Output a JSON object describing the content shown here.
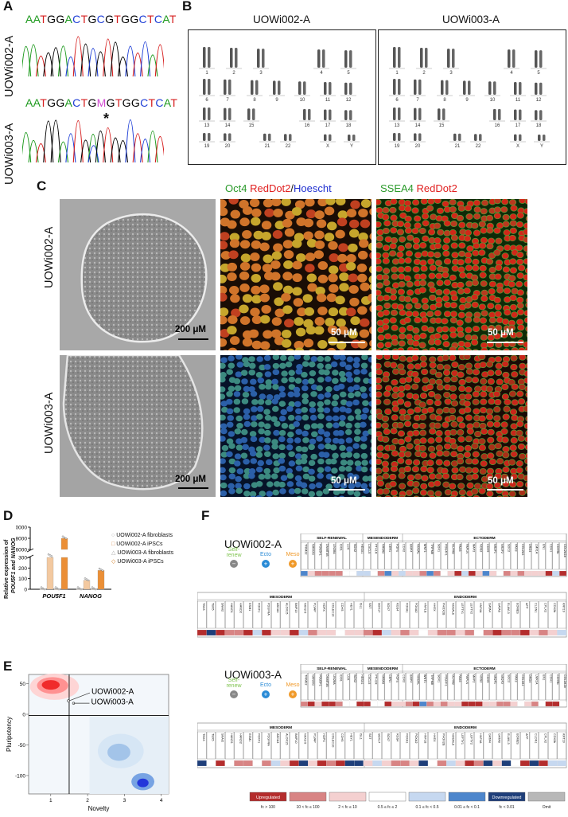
{
  "panels": {
    "a": "A",
    "b": "B",
    "c": "C",
    "d": "D",
    "e": "E",
    "f": "F"
  },
  "lines": {
    "l2": "UOWi002-A",
    "l3": "UOWi003-A"
  },
  "panel_a": {
    "seq_l2": [
      "A",
      "A",
      "T",
      "G",
      "G",
      "A",
      "C",
      "T",
      "G",
      "C",
      "G",
      "T",
      "G",
      "G",
      "C",
      "T",
      "C",
      "A",
      "T"
    ],
    "seq_l3": [
      "A",
      "A",
      "T",
      "G",
      "G",
      "A",
      "C",
      "T",
      "G",
      "M",
      "G",
      "T",
      "G",
      "G",
      "C",
      "T",
      "C",
      "A",
      "T"
    ],
    "mark": "*"
  },
  "panel_b": {
    "chromosomes": [
      "1",
      "2",
      "3",
      "4",
      "5",
      "6",
      "7",
      "8",
      "9",
      "10",
      "11",
      "12",
      "13",
      "14",
      "15",
      "16",
      "17",
      "18",
      "19",
      "20",
      "21",
      "22",
      "X",
      "Y"
    ]
  },
  "panel_c": {
    "stain1": {
      "oct": "Oct4",
      "red": "RedDot2",
      "slash": "/",
      "hoe": "Hoescht"
    },
    "stain2": {
      "ssea": "SSEA4",
      "red": "RedDot2"
    },
    "scale_phase": "200 μM",
    "scale_fluor": "50  μM",
    "scale_fluor2": "50  μM",
    "scale_fluor3": "50  μM",
    "scale_fluor4": "50  μM",
    "scale_phase2": "200 μM"
  },
  "panel_d": {
    "ylabel_line1": "Relative expression of",
    "ylabel_line2": "POU5F1 and NANOG",
    "yticks": [
      "10000",
      "8000",
      "6000",
      "300",
      "200",
      "100",
      "0"
    ],
    "categories": [
      "POU5F1",
      "NANOG"
    ],
    "legend": [
      "UOWi002-A fibroblasts",
      "UOWi002-A iPSCs",
      "UOWi003-A fibroblasts",
      "UOWi003-A iPSCs"
    ]
  },
  "chart_data": {
    "type": "bar",
    "categories": [
      "POU5F1",
      "NANOG"
    ],
    "series": [
      {
        "name": "UOWi002-A fibroblasts",
        "values": [
          1,
          1
        ]
      },
      {
        "name": "UOWi002-A iPSCs",
        "values": [
          4800,
          85
        ]
      },
      {
        "name": "UOWi003-A fibroblasts",
        "values": [
          1,
          1
        ]
      },
      {
        "name": "UOWi003-A iPSCs",
        "values": [
          8000,
          178
        ]
      }
    ],
    "ylabel": "Relative expression of POU5F1 and NANOG",
    "yaxis_break": [
      300,
      6000
    ],
    "ylim": [
      0,
      10000
    ],
    "yticks": [
      0,
      100,
      200,
      300,
      6000,
      8000,
      10000
    ]
  },
  "panel_e": {
    "xlabel": "Novelty",
    "ylabel": "Pluripotency",
    "yticks": [
      "50",
      "0",
      "-50",
      "-100"
    ],
    "xticks": [
      "1",
      "2",
      "3",
      "4"
    ],
    "label_l2": "UOWi002-A",
    "label_l3": "UOWi003-A"
  },
  "panel_f": {
    "legend": {
      "self": "Self-\nrenew",
      "self1": "Self-",
      "self2": "renew",
      "ecto": "Ecto",
      "meso": "Meso",
      "endo": "Endo"
    },
    "headers_top": [
      "SELF-RENEWAL",
      "MESENDODERM",
      "ECTODERM"
    ],
    "headers_bottom": [
      "MESODERM",
      "ENDODERM"
    ],
    "top_genes": [
      "TRIM22",
      "NANOG",
      "POU5F1",
      "DNMT3B",
      "LIN28A",
      "IDO1",
      "LCK",
      "SOX2",
      "HESX1",
      "CXCL5",
      "PTH1R",
      "NR5A2",
      "CER1",
      "FGF4",
      "CDX2",
      "BMP4",
      "NODAL",
      "WNT1",
      "TRPM8",
      "SOX1",
      "POU4F1",
      "OLFM3",
      "PAX6",
      "PAPLN",
      "MAP2",
      "NOS2",
      "CDH9",
      "NR2F1",
      "NR2F2",
      "SDC2",
      "PAX3",
      "COL2A1",
      "DRD4",
      "LMX1A",
      "EN1",
      "CDH1",
      "CDH9b",
      "COL2A1b"
    ],
    "bottom_genes": [
      "TBX3",
      "TBX5",
      "SNAI2",
      "HAND1",
      "HAND2",
      "ESM1",
      "FOXF1",
      "PDGFRA",
      "ABCA4",
      "ALOX15",
      "BMP10",
      "NKX2-5",
      "PLVAP",
      "HOPX",
      "COLEC10",
      "CDH5",
      "HEY1",
      "ISL1",
      "SST",
      "SOX17",
      "SOX7",
      "RGS4",
      "FOXA1",
      "FOXA2",
      "HNF1B",
      "HHEX",
      "PHOX2B",
      "NODALb",
      "LEFTY1",
      "LEFTY2",
      "HNF4A",
      "GATA4",
      "GATA6",
      "ELAVL3",
      "EOMES",
      "AFP",
      "CLDN1",
      "CPLX2",
      "CDX2b",
      "KRT19"
    ],
    "key": [
      {
        "label": "Upregulated",
        "range": "fc > 100",
        "color": "#b42d2d"
      },
      {
        "label": "",
        "range": "10 < fc ≤ 100",
        "color": "#d88484"
      },
      {
        "label": "",
        "range": "2 < fc ≤ 10",
        "color": "#f4d0d0"
      },
      {
        "label": "",
        "range": "0.5 ≤ fc ≤ 2",
        "color": "#ffffff"
      },
      {
        "label": "",
        "range": "0.1 ≤ fc < 0.5",
        "color": "#c6d8f0"
      },
      {
        "label": "",
        "range": "0.01 ≤ fc < 0.1",
        "color": "#4d86cc"
      },
      {
        "label": "Downregulated",
        "range": "fc < 0.01",
        "color": "#1f3f7a"
      },
      {
        "label": "",
        "range": "Omit",
        "color": "#b8b8b8"
      }
    ]
  },
  "colors": {
    "up": "#b42d2d",
    "down": "#1f3f7a",
    "green": "#2a9a2a",
    "red": "#e02020",
    "blue": "#2030d0"
  }
}
